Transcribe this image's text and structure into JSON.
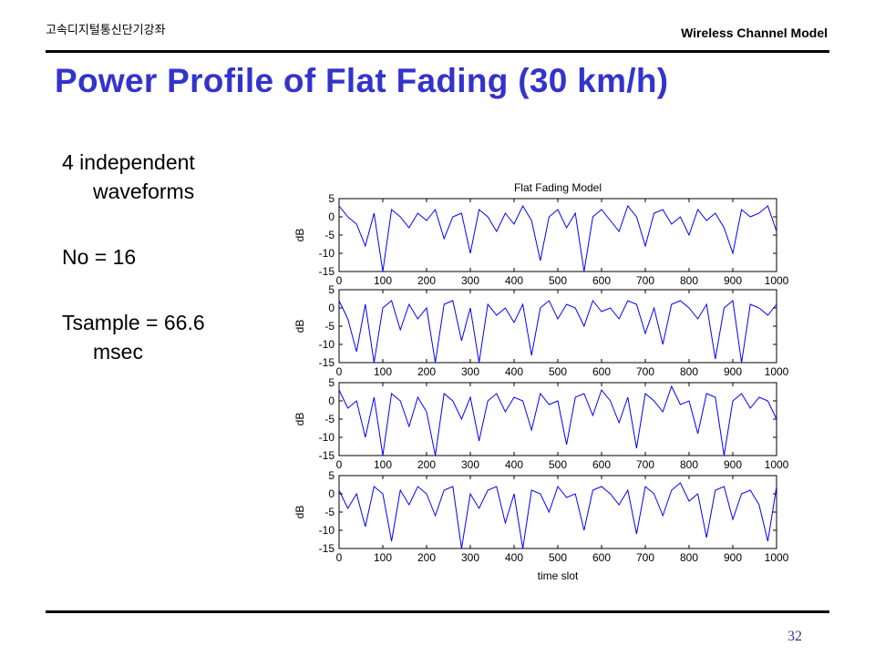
{
  "header": {
    "course": "고속디지털통신단기강좌",
    "topic": "Wireless Channel Model"
  },
  "title": "Power Profile of Flat Fading (30 km/h)",
  "bullets": [
    "4 independent waveforms",
    "No = 16",
    "Tsample = 66.6 msec"
  ],
  "page_number": "32",
  "chart_data": [
    {
      "type": "line",
      "title": "Flat Fading Model",
      "ylabel": "dB",
      "xlim": [
        0,
        1000
      ],
      "ylim": [
        -15,
        5
      ],
      "xticks": [
        0,
        100,
        200,
        300,
        400,
        500,
        600,
        700,
        800,
        900,
        1000
      ],
      "yticks": [
        -15,
        -10,
        -5,
        0,
        5
      ],
      "x": [
        0,
        20,
        40,
        60,
        80,
        100,
        120,
        140,
        160,
        180,
        200,
        220,
        240,
        260,
        280,
        300,
        320,
        340,
        360,
        380,
        400,
        420,
        440,
        460,
        480,
        500,
        520,
        540,
        560,
        580,
        600,
        620,
        640,
        660,
        680,
        700,
        720,
        740,
        760,
        780,
        800,
        820,
        840,
        860,
        880,
        900,
        920,
        940,
        960,
        980,
        1000
      ],
      "series": [
        {
          "color": "#0000ff",
          "values": [
            3,
            0,
            -2,
            -8,
            1,
            -15,
            2,
            0,
            -3,
            1,
            -1,
            2,
            -6,
            0,
            1,
            -10,
            2,
            0,
            -4,
            1,
            -2,
            3,
            -1,
            -12,
            0,
            2,
            -3,
            1,
            -15,
            0,
            2,
            -1,
            -4,
            3,
            0,
            -8,
            1,
            2,
            -2,
            0,
            -5,
            2,
            -1,
            1,
            -3,
            -10,
            2,
            0,
            1,
            3,
            -4
          ]
        }
      ]
    },
    {
      "type": "line",
      "ylabel": "dB",
      "xlim": [
        0,
        1000
      ],
      "ylim": [
        -15,
        5
      ],
      "xticks": [
        0,
        100,
        200,
        300,
        400,
        500,
        600,
        700,
        800,
        900,
        1000
      ],
      "yticks": [
        -15,
        -10,
        -5,
        0,
        5
      ],
      "x": [
        0,
        20,
        40,
        60,
        80,
        100,
        120,
        140,
        160,
        180,
        200,
        220,
        240,
        260,
        280,
        300,
        320,
        340,
        360,
        380,
        400,
        420,
        440,
        460,
        480,
        500,
        520,
        540,
        560,
        580,
        600,
        620,
        640,
        660,
        680,
        700,
        720,
        740,
        760,
        780,
        800,
        820,
        840,
        860,
        880,
        900,
        920,
        940,
        960,
        980,
        1000
      ],
      "series": [
        {
          "color": "#0000ff",
          "values": [
            2,
            -3,
            -12,
            1,
            -15,
            0,
            2,
            -6,
            1,
            -3,
            0,
            -15,
            1,
            2,
            -9,
            0,
            -15,
            1,
            -2,
            0,
            -4,
            1,
            -13,
            0,
            2,
            -3,
            1,
            0,
            -5,
            2,
            -1,
            0,
            -3,
            2,
            1,
            -7,
            0,
            -10,
            1,
            2,
            0,
            -3,
            1,
            -14,
            0,
            2,
            -15,
            1,
            0,
            -2,
            1
          ]
        }
      ]
    },
    {
      "type": "line",
      "ylabel": "dB",
      "xlim": [
        0,
        1000
      ],
      "ylim": [
        -15,
        5
      ],
      "xticks": [
        0,
        100,
        200,
        300,
        400,
        500,
        600,
        700,
        800,
        900,
        1000
      ],
      "yticks": [
        -15,
        -10,
        -5,
        0,
        5
      ],
      "x": [
        0,
        20,
        40,
        60,
        80,
        100,
        120,
        140,
        160,
        180,
        200,
        220,
        240,
        260,
        280,
        300,
        320,
        340,
        360,
        380,
        400,
        420,
        440,
        460,
        480,
        500,
        520,
        540,
        560,
        580,
        600,
        620,
        640,
        660,
        680,
        700,
        720,
        740,
        760,
        780,
        800,
        820,
        840,
        860,
        880,
        900,
        920,
        940,
        960,
        980,
        1000
      ],
      "series": [
        {
          "color": "#0000ff",
          "values": [
            3,
            -2,
            0,
            -10,
            1,
            -15,
            2,
            0,
            -7,
            1,
            -3,
            -15,
            2,
            0,
            -5,
            1,
            -11,
            0,
            2,
            -3,
            1,
            0,
            -8,
            2,
            -1,
            0,
            -12,
            1,
            2,
            -4,
            3,
            0,
            -6,
            1,
            -13,
            2,
            0,
            -3,
            4,
            -1,
            0,
            -9,
            2,
            1,
            -15,
            0,
            2,
            -2,
            1,
            0,
            -5
          ]
        }
      ]
    },
    {
      "type": "line",
      "ylabel": "dB",
      "xlabel": "time slot",
      "xlim": [
        0,
        1000
      ],
      "ylim": [
        -15,
        5
      ],
      "xticks": [
        0,
        100,
        200,
        300,
        400,
        500,
        600,
        700,
        800,
        900,
        1000
      ],
      "yticks": [
        -15,
        -10,
        -5,
        0,
        5
      ],
      "x": [
        0,
        20,
        40,
        60,
        80,
        100,
        120,
        140,
        160,
        180,
        200,
        220,
        240,
        260,
        280,
        300,
        320,
        340,
        360,
        380,
        400,
        420,
        440,
        460,
        480,
        500,
        520,
        540,
        560,
        580,
        600,
        620,
        640,
        660,
        680,
        700,
        720,
        740,
        760,
        780,
        800,
        820,
        840,
        860,
        880,
        900,
        920,
        940,
        960,
        980,
        1000
      ],
      "series": [
        {
          "color": "#0000ff",
          "values": [
            1,
            -4,
            0,
            -9,
            2,
            0,
            -13,
            1,
            -3,
            2,
            0,
            -6,
            1,
            2,
            -15,
            0,
            -4,
            1,
            2,
            -8,
            0,
            -15,
            1,
            0,
            -5,
            2,
            -1,
            0,
            -10,
            1,
            2,
            0,
            -3,
            1,
            -11,
            2,
            0,
            -6,
            1,
            3,
            -2,
            0,
            -12,
            1,
            2,
            -7,
            0,
            1,
            -3,
            -13,
            2
          ]
        }
      ]
    }
  ]
}
